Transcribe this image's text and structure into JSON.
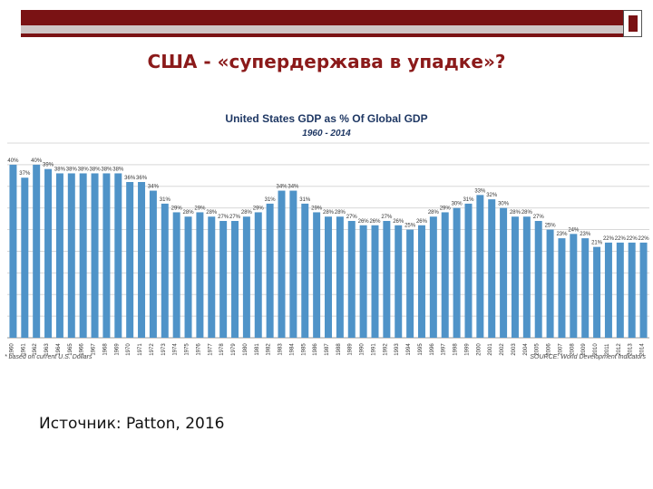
{
  "slide": {
    "title": "США  - «супердержава в упадке»?",
    "source": "Источник: Patton, 2016"
  },
  "colors": {
    "accent": "#7a1214",
    "bar": "#4f93c8",
    "title_text": "#8b1a1a",
    "chart_title": "#1f3864"
  },
  "chart_data": {
    "type": "bar",
    "title": "United States GDP as % Of Global GDP",
    "subtitle": "1960 - 2014",
    "xlabel": "",
    "ylabel": "",
    "grid": true,
    "ylim": [
      0,
      45
    ],
    "footnote_left": "* based on current U.S. Dollars",
    "footnote_right": "SOURCE: World Development Indicators",
    "categories": [
      "1960",
      "1961",
      "1962",
      "1963",
      "1964",
      "1965",
      "1966",
      "1967",
      "1968",
      "1969",
      "1970",
      "1971",
      "1972",
      "1973",
      "1974",
      "1975",
      "1976",
      "1977",
      "1978",
      "1979",
      "1980",
      "1981",
      "1982",
      "1983",
      "1984",
      "1985",
      "1986",
      "1987",
      "1988",
      "1989",
      "1990",
      "1991",
      "1992",
      "1993",
      "1994",
      "1995",
      "1996",
      "1997",
      "1998",
      "1999",
      "2000",
      "2001",
      "2002",
      "2003",
      "2004",
      "2005",
      "2006",
      "2007",
      "2008",
      "2009",
      "2010",
      "2011",
      "2012",
      "2013",
      "2014"
    ],
    "values": [
      40,
      37,
      40,
      39,
      38,
      38,
      38,
      38,
      38,
      38,
      36,
      36,
      34,
      31,
      29,
      28,
      29,
      28,
      27,
      27,
      28,
      29,
      31,
      34,
      34,
      31,
      29,
      28,
      28,
      27,
      26,
      26,
      27,
      26,
      25,
      26,
      28,
      29,
      30,
      31,
      33,
      32,
      30,
      28,
      28,
      27,
      25,
      23,
      24,
      23,
      21,
      22,
      22,
      22,
      22
    ],
    "data_labels": [
      "40%",
      "37%",
      "40%",
      "39%",
      "38%",
      "38%",
      "38%",
      "38%",
      "38%",
      "38%",
      "36%",
      "36%",
      "34%",
      "31%",
      "29%",
      "28%",
      "29%",
      "28%",
      "27%",
      "27%",
      "28%",
      "29%",
      "31%",
      "34%",
      "34%",
      "31%",
      "29%",
      "28%",
      "28%",
      "27%",
      "26%",
      "26%",
      "27%",
      "26%",
      "25%",
      "26%",
      "28%",
      "29%",
      "30%",
      "31%",
      "33%",
      "32%",
      "30%",
      "28%",
      "28%",
      "27%",
      "25%",
      "23%",
      "24%",
      "23%",
      "21%",
      "22%",
      "22%",
      "22%",
      "22%"
    ]
  }
}
